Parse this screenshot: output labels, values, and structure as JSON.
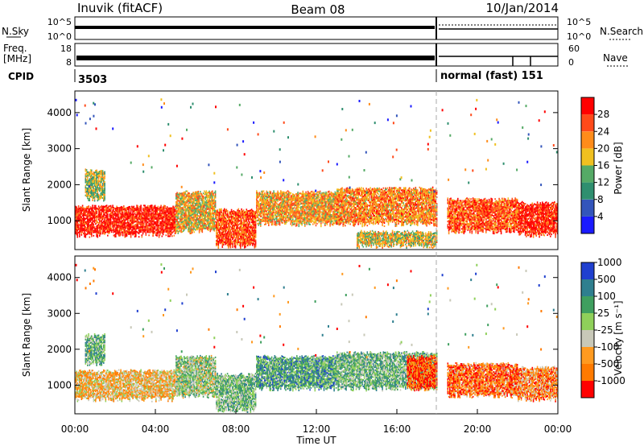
{
  "header": {
    "station": "Inuvik (fitACF)",
    "beam": "Beam 08",
    "date": "10/Jan/2014"
  },
  "param_panels": {
    "nsky_label": "N.Sky",
    "nsky_ticks": [
      "10^5",
      "10^0"
    ],
    "nsearch_label": "N.Search",
    "nsearch_ticks": [
      "10^5",
      "10^0"
    ],
    "freq_label_1": "Freq.",
    "freq_label_2": "[MHz]",
    "freq_ticks": [
      "18",
      "8"
    ],
    "nave_label": "Nave",
    "nave_ticks": [
      "60",
      "0"
    ],
    "cpid_label": "CPID",
    "cpid_values": [
      {
        "label": "3503",
        "start_hour": 0
      },
      {
        "label": "normal (fast) 151",
        "start_hour": 18
      }
    ],
    "mode_change_hour": 18
  },
  "chart_data": [
    {
      "type": "heatmap",
      "name": "power-panel",
      "ylabel": "Slant Range [km]",
      "yticks": [
        "1000",
        "2000",
        "3000",
        "4000"
      ],
      "ylim": [
        200,
        4600
      ],
      "xlim": [
        0,
        24
      ],
      "colorbar_label": "Power [dB]",
      "colorbar_ticks": [
        "4",
        "8",
        "12",
        "16",
        "20",
        "24",
        "28"
      ],
      "colorbar_colors": [
        "#1a1aff",
        "#3355bb",
        "#2f8f6f",
        "#55aa66",
        "#f0c020",
        "#ff8c1a",
        "#ff4a1a",
        "#ff0000"
      ],
      "regions": [
        {
          "hours": [
            0,
            5
          ],
          "range_km": [
            600,
            1400
          ],
          "level": 0.92
        },
        {
          "hours": [
            0.5,
            1.5
          ],
          "range_km": [
            1600,
            2400
          ],
          "level": 0.5
        },
        {
          "hours": [
            5,
            7
          ],
          "range_km": [
            700,
            1800
          ],
          "level": 0.6
        },
        {
          "hours": [
            7,
            9
          ],
          "range_km": [
            300,
            1300
          ],
          "level": 0.82
        },
        {
          "hours": [
            9,
            13
          ],
          "range_km": [
            900,
            1800
          ],
          "level": 0.65
        },
        {
          "hours": [
            13,
            18
          ],
          "range_km": [
            900,
            1900
          ],
          "level": 0.7
        },
        {
          "hours": [
            14,
            18
          ],
          "range_km": [
            300,
            700
          ],
          "level": 0.55
        },
        {
          "hours": [
            18.5,
            22
          ],
          "range_km": [
            700,
            1600
          ],
          "level": 0.8
        },
        {
          "hours": [
            22,
            24
          ],
          "range_km": [
            600,
            1500
          ],
          "level": 0.9
        }
      ]
    },
    {
      "type": "heatmap",
      "name": "velocity-panel",
      "ylabel": "Slant Range [km]",
      "yticks": [
        "1000",
        "2000",
        "3000",
        "4000"
      ],
      "ylim": [
        200,
        4600
      ],
      "xlim": [
        0,
        24
      ],
      "xticks": [
        "00:00",
        "04:00",
        "08:00",
        "12:00",
        "16:00",
        "20:00",
        "00:00"
      ],
      "xlabel": "Time UT",
      "colorbar_label": "Velocity [m s⁻¹]",
      "colorbar_ticks": [
        "-1000",
        "-500",
        "-100",
        "-25",
        "25",
        "100",
        "500",
        "1000"
      ],
      "colorbar_colors": [
        "#ff0000",
        "#ff7a00",
        "#ff9a20",
        "#c8c8b8",
        "#8fd05a",
        "#3f9f5f",
        "#2f7f8f",
        "#1f3fcf"
      ],
      "regions": [
        {
          "hours": [
            0,
            5
          ],
          "range_km": [
            600,
            1400
          ],
          "level": 0.35
        },
        {
          "hours": [
            0.5,
            1.5
          ],
          "range_km": [
            1600,
            2400
          ],
          "level": 0.65
        },
        {
          "hours": [
            5,
            7
          ],
          "range_km": [
            700,
            1800
          ],
          "level": 0.55
        },
        {
          "hours": [
            7,
            9
          ],
          "range_km": [
            300,
            1300
          ],
          "level": 0.6
        },
        {
          "hours": [
            9,
            13
          ],
          "range_km": [
            900,
            1800
          ],
          "level": 0.7
        },
        {
          "hours": [
            13,
            18
          ],
          "range_km": [
            900,
            1900
          ],
          "level": 0.62
        },
        {
          "hours": [
            16.5,
            18
          ],
          "range_km": [
            900,
            1800
          ],
          "level": 0.15
        },
        {
          "hours": [
            18.5,
            22
          ],
          "range_km": [
            700,
            1600
          ],
          "level": 0.2
        },
        {
          "hours": [
            22,
            24
          ],
          "range_km": [
            600,
            1500
          ],
          "level": 0.25
        }
      ]
    }
  ]
}
